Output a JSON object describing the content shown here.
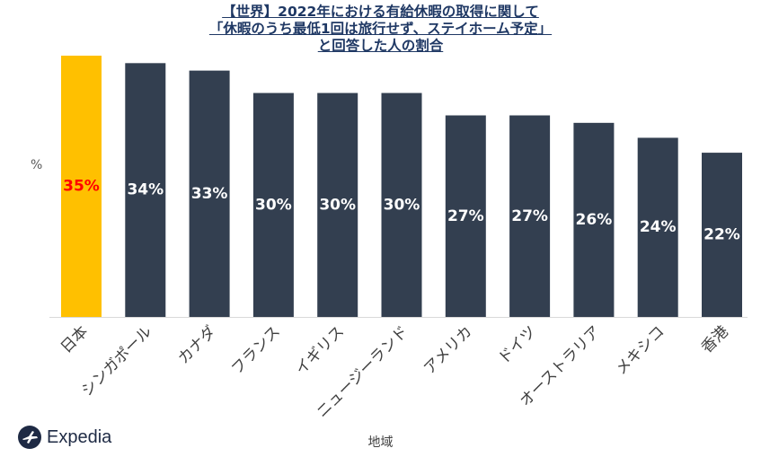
{
  "title": {
    "line1": "【世界】2022年における有給休暇の取得に関して",
    "line2": "「休暇のうち最低1回は旅行せず、ステイホーム予定」",
    "line3": "と回答した人の割合"
  },
  "brand": {
    "name": "Expedia",
    "icon": "plane-icon"
  },
  "colors": {
    "highlight": "#FFC000",
    "bar": "#333F50",
    "highlight_label": "#FF0000",
    "label": "#FFFFFF"
  },
  "chart_data": {
    "type": "bar",
    "title": "【世界】2022年における有給休暇の取得に関して「休暇のうち最低1回は旅行せず、ステイホーム予定」と回答した人の割合",
    "xlabel": "地域",
    "ylabel": "%",
    "ylim": [
      0,
      35
    ],
    "grid": false,
    "categories": [
      "日本",
      "シンガポール",
      "カナダ",
      "フランス",
      "イギリス",
      "ニュージーランド",
      "アメリカ",
      "ドイツ",
      "オーストラリア",
      "メキシコ",
      "香港"
    ],
    "values": [
      35,
      34,
      33,
      30,
      30,
      30,
      27,
      27,
      26,
      24,
      22
    ],
    "data_labels": [
      "35%",
      "34%",
      "33%",
      "30%",
      "30%",
      "30%",
      "27%",
      "27%",
      "26%",
      "24%",
      "22%"
    ],
    "highlight_index": 0
  }
}
